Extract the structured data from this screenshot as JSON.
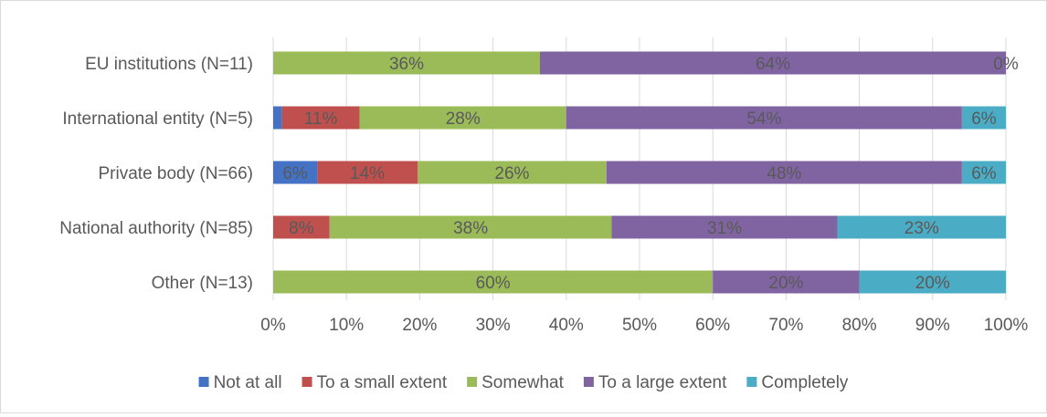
{
  "chart_data": {
    "type": "bar",
    "orientation": "horizontal",
    "stacked": true,
    "percent_stacked": true,
    "categories": [
      "EU institutions (N=11)",
      "International entity (N=5)",
      "Private body (N=66)",
      "National authority (N=85)",
      "Other (N=13)"
    ],
    "series": [
      {
        "name": "Not at all",
        "color": "#4472C4",
        "values": [
          0,
          1.2,
          6,
          0,
          0
        ],
        "labels": [
          "",
          "",
          "6%",
          "",
          ""
        ]
      },
      {
        "name": "To a small extent",
        "color": "#C0504D",
        "values": [
          0,
          10.6,
          13.7,
          7.7,
          0
        ],
        "labels": [
          "",
          "11%",
          "14%",
          "8%",
          ""
        ]
      },
      {
        "name": "Somewhat",
        "color": "#9BBB59",
        "values": [
          36.4,
          28.2,
          25.8,
          38.5,
          60
        ],
        "labels": [
          "36%",
          "28%",
          "26%",
          "38%",
          "60%"
        ]
      },
      {
        "name": "To a large extent",
        "color": "#8064A2",
        "values": [
          63.6,
          54,
          48.5,
          30.8,
          20
        ],
        "labels": [
          "64%",
          "54%",
          "48%",
          "31%",
          "20%"
        ]
      },
      {
        "name": "Completely",
        "color": "#4BACC6",
        "values": [
          0,
          6,
          6,
          23,
          20
        ],
        "labels": [
          "0%",
          "6%",
          "6%",
          "23%",
          "20%"
        ]
      }
    ],
    "x_ticks": [
      "0%",
      "10%",
      "20%",
      "30%",
      "40%",
      "50%",
      "60%",
      "70%",
      "80%",
      "90%",
      "100%"
    ],
    "xlim": [
      0,
      100
    ],
    "grid": "vertical",
    "legend": "bottom",
    "title": "",
    "xlabel": "",
    "ylabel": ""
  }
}
